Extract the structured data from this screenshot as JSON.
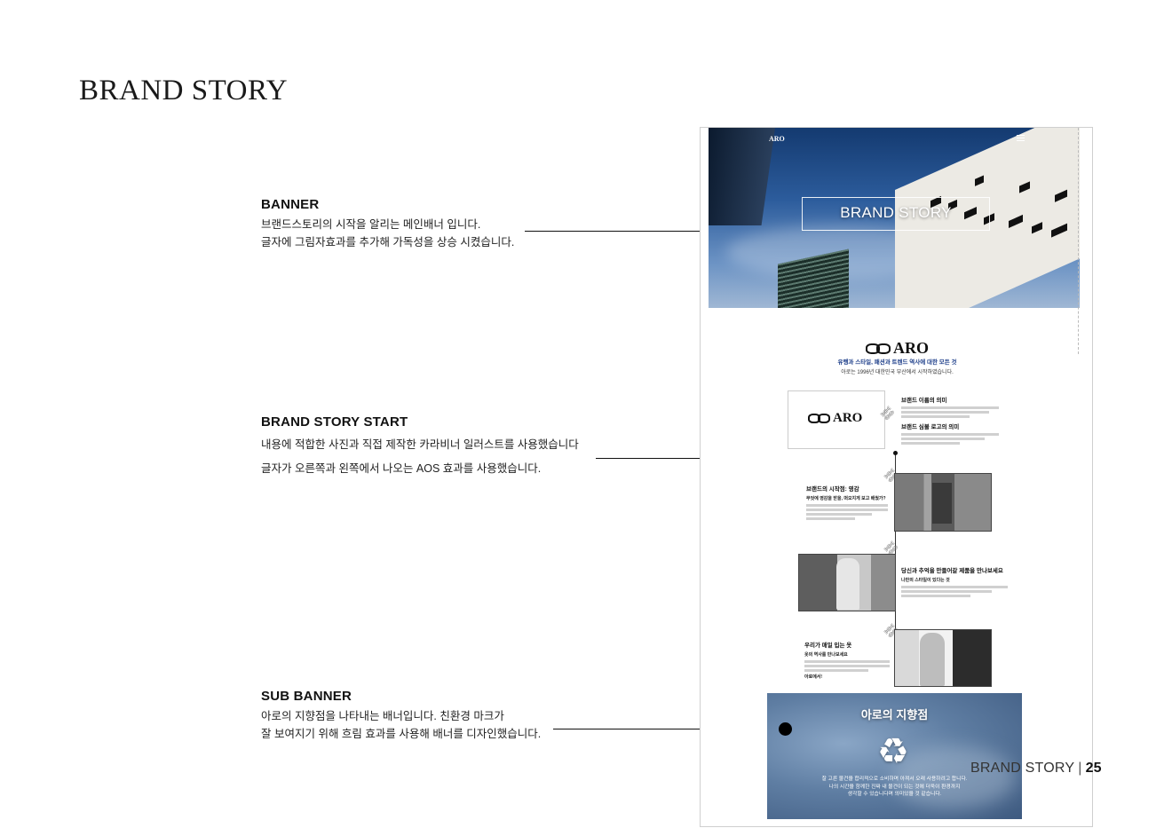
{
  "page_title": "BRAND STORY",
  "notes": [
    {
      "title": "BANNER",
      "lines": [
        "브랜드스토리의 시작을 알리는 메인배너 입니다.",
        "글자에 그림자효과를 추가해 가독성을 상승 시켰습니다."
      ]
    },
    {
      "title": "BRAND STORY START",
      "lines": [
        "내용에 적합한 사진과 직접 제작한 카라비너 일러스트를 사용했습니다",
        "글자가 오른쪽과 왼쪽에서 나오는 AOS 효과를 사용했습니다."
      ]
    },
    {
      "title": "SUB BANNER",
      "lines": [
        "아로의 지향점을 나타내는 배너입니다. 친환경 마크가",
        "잘 보여지기 위해 흐림 효과를 사용해 배너를 디자인했습니다."
      ]
    }
  ],
  "mockup": {
    "header_logo": "ARO",
    "hero_title": "BRAND STORY",
    "logo_text": "ARO",
    "intro_title": "유행과 스타일, 패션과 트렌드 역사에 대한 모든 것",
    "intro_sub": "아로는 1996년 대한민국 부산에서 시작하였습니다.",
    "meaning_title": "브랜드 이름의 의미",
    "logo_meaning_title": "브랜드 심볼 로고의 의미",
    "section1_title": "브랜드의 시작점: 영감",
    "section1_sub": "무엇에 영감을 받을, 떠오지게 보고 배웠가?",
    "section2_title": "당신과 추억을 만들어갈 제품을 만나보세요",
    "section2_sub": "나만의 스타일이 있다는 것",
    "section3_title": "우리가 매일 입는 옷",
    "section3_sub": "옷의 역사를 만나보세요",
    "section3_link": "아로에서!",
    "subbanner_title": "아로의 지향점",
    "recycle_icon": "♻",
    "subbanner_lines": [
      "잘 고른 물건을 합리적으로 소비하며 아껴서 오래 사용하려고 합니다.",
      "나의 시간을 함께한 진짜 내 물건이 되는 것에 더욱이 환경까지",
      "생각할 수 있습니다며 의미있을 것 같습니다."
    ]
  },
  "footer": {
    "label": "BRAND STORY",
    "separator": "|",
    "page_number": "25"
  }
}
